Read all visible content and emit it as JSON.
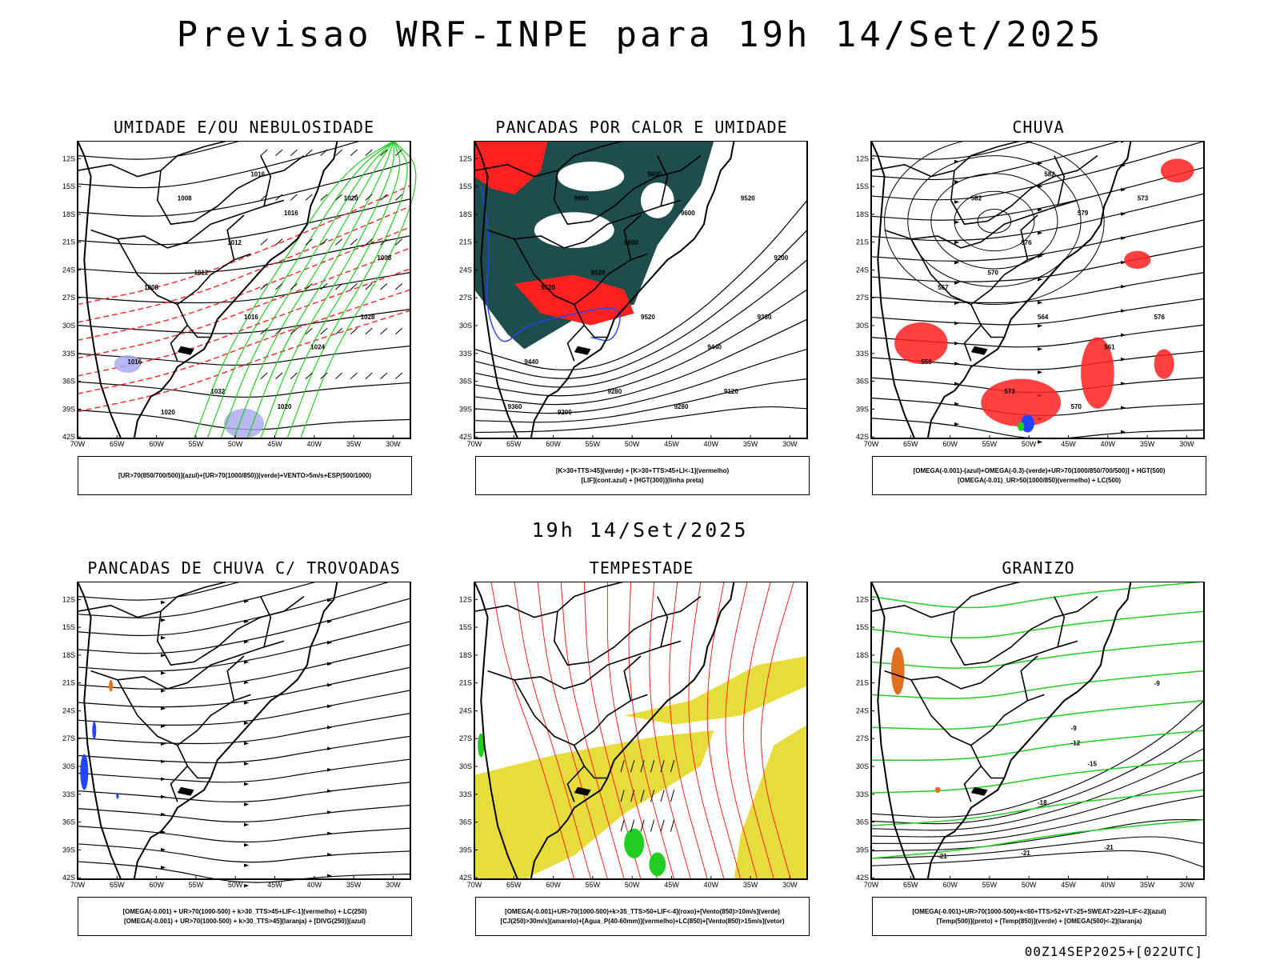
{
  "title": "Previsao WRF-INPE  para 19h 14/Set/2025",
  "subtitle_mid": "19h 14/Set/2025",
  "run_stamp": "00Z14SEP2025+[022UTC]",
  "lat_labels": [
    "12S",
    "15S",
    "18S",
    "21S",
    "24S",
    "27S",
    "30S",
    "33S",
    "36S",
    "39S",
    "42S"
  ],
  "lon_labels": [
    "70W",
    "65W",
    "60W",
    "55W",
    "50W",
    "45W",
    "40W",
    "35W",
    "30W"
  ],
  "panels": [
    {
      "title": "UMIDADE E/OU NEBULOSIDADE",
      "legend": [
        "[UR>70(850/700/500)](azul)+[UR>70(1000/850)](verde)+VENTO>5m/s+ESP(500/1000)"
      ],
      "contour_labels": [
        "1008",
        "1016",
        "1016",
        "1012",
        "1020",
        "1012",
        "1008",
        "1016",
        "1024",
        "1016",
        "1028",
        "1032",
        "1020",
        "1020",
        "1008"
      ]
    },
    {
      "title": "PANCADAS POR CALOR E UMIDADE",
      "legend": [
        "[K>30+TTS>45](verde) + [K>30+TTS>45+LI<-1](vermelho)",
        "[LIF](cont.azul) + [HGT(300)](linha preta)"
      ],
      "contour_labels": [
        "9600",
        "9600",
        "9600",
        "9600",
        "9520",
        "9520",
        "9520",
        "9520",
        "9440",
        "9440",
        "9360",
        "9280",
        "9280",
        "9200",
        "9200",
        "9120",
        "9360"
      ]
    },
    {
      "title": "CHUVA",
      "legend": [
        "[OMEGA(-0.001)-(azul)+OMEGA(-0.3)-(verde)+UR>70(1000/850/700/500)] + HGT(500)",
        "[OMEGA(-0.01)_UR>50(1000/850)(vermelho) + LC(500)"
      ],
      "contour_labels": [
        "582",
        "582",
        "579",
        "576",
        "573",
        "570",
        "567",
        "564",
        "561",
        "558",
        "576",
        "573",
        "570"
      ]
    },
    {
      "title": "PANCADAS DE CHUVA C/ TROVOADAS",
      "legend": [
        "[OMEGA(-0.001) + UR>70(1000-500) + k>30_TTS>45+LIF<-1](vermelho) + LC(250)",
        "[OMEGA(-0.001) + UR>70(1000-500) + k>30_TTS>45](laranja) + [DIVG(250)](azul)"
      ],
      "contour_labels": []
    },
    {
      "title": "TEMPESTADE",
      "legend": [
        "[OMEGA(-0.001)+UR>70(1000-500)+k>35_TTS>50+LIF<-4](roxo)+[Vento(850)>10m/s](verde)",
        "[CJ(250)>30m/s](amarelo)+[Agua_P(40-60mm)](vermelho)+LC(850)+[Vento(850)>15m/s](vetor)"
      ],
      "contour_labels": []
    },
    {
      "title": "GRANIZO",
      "legend": [
        "[OMEGA(-0.001)+UR>70(1000-500)+k<60+TTS>52+VT>25+SWEAT>220+LIF<-2](azul)",
        "[Temp(500)](preto) + [Temp(850)](verde) + [OMEGA(500)<-2](laranja)"
      ],
      "contour_labels": [
        "-9",
        "-12",
        "-15",
        "-18",
        "-21",
        "-21",
        "-21",
        "-9"
      ]
    }
  ],
  "colors": {
    "red": "#ff2020",
    "green": "#22cc22",
    "blue": "#2244ff",
    "darkteal": "#1e4d4d",
    "yellow": "#e6dc3c",
    "orange": "#e07020",
    "lavender": "#a6a6f0"
  }
}
